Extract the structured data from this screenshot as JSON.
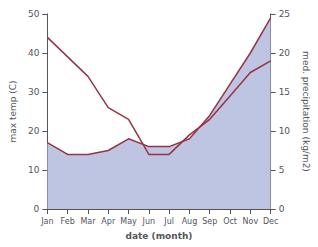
{
  "chart_data": {
    "type": "line",
    "xlabel": "date (month)",
    "ylabel": "max temp (C)",
    "y2label": "med. precipitation (kg/m2)",
    "categories": [
      "Jan",
      "Feb",
      "Mar",
      "Apr",
      "May",
      "Jun",
      "Jul",
      "Aug",
      "Sep",
      "Oct",
      "Nov",
      "Dec"
    ],
    "series": [
      {
        "type": "area",
        "color": "#b3bbdd",
        "axis": "y2",
        "values": [
          8.5,
          7,
          7,
          7.5,
          9,
          8,
          8,
          9,
          12,
          16,
          20,
          24.5
        ]
      },
      {
        "type": "line",
        "color": "#993344",
        "values": [
          44,
          39,
          34,
          26,
          23,
          14,
          14,
          19,
          23,
          29,
          35,
          38
        ]
      },
      {
        "type": "line",
        "color": "#993344",
        "axis": "y2",
        "values": [
          8.5,
          7,
          7,
          7.5,
          9,
          8,
          8,
          9,
          12,
          16,
          20,
          24.5
        ]
      }
    ],
    "ylim": [
      0,
      50
    ],
    "yticks": [
      0,
      10,
      20,
      30,
      40,
      50
    ],
    "y2lim": [
      0,
      25
    ],
    "y2ticks": [
      0,
      5,
      10,
      15,
      20,
      25
    ],
    "grid": false
  }
}
